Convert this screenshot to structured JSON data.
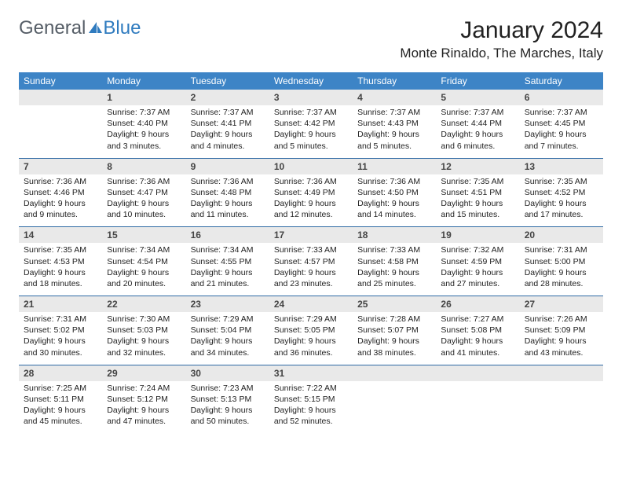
{
  "brand": {
    "part1": "General",
    "part2": "Blue"
  },
  "title": "January 2024",
  "location": "Monte Rinaldo, The Marches, Italy",
  "colors": {
    "header_bg": "#3d84c6",
    "header_text": "#ffffff",
    "daynum_bg": "#e9e9e9",
    "row_border": "#2f6aa5",
    "logo_gray": "#555d66",
    "logo_blue": "#2f7bbf"
  },
  "weekdays": [
    "Sunday",
    "Monday",
    "Tuesday",
    "Wednesday",
    "Thursday",
    "Friday",
    "Saturday"
  ],
  "weeks": [
    {
      "nums": [
        "",
        "1",
        "2",
        "3",
        "4",
        "5",
        "6"
      ],
      "cells": [
        null,
        {
          "sunrise": "Sunrise: 7:37 AM",
          "sunset": "Sunset: 4:40 PM",
          "day1": "Daylight: 9 hours",
          "day2": "and 3 minutes."
        },
        {
          "sunrise": "Sunrise: 7:37 AM",
          "sunset": "Sunset: 4:41 PM",
          "day1": "Daylight: 9 hours",
          "day2": "and 4 minutes."
        },
        {
          "sunrise": "Sunrise: 7:37 AM",
          "sunset": "Sunset: 4:42 PM",
          "day1": "Daylight: 9 hours",
          "day2": "and 5 minutes."
        },
        {
          "sunrise": "Sunrise: 7:37 AM",
          "sunset": "Sunset: 4:43 PM",
          "day1": "Daylight: 9 hours",
          "day2": "and 5 minutes."
        },
        {
          "sunrise": "Sunrise: 7:37 AM",
          "sunset": "Sunset: 4:44 PM",
          "day1": "Daylight: 9 hours",
          "day2": "and 6 minutes."
        },
        {
          "sunrise": "Sunrise: 7:37 AM",
          "sunset": "Sunset: 4:45 PM",
          "day1": "Daylight: 9 hours",
          "day2": "and 7 minutes."
        }
      ]
    },
    {
      "nums": [
        "7",
        "8",
        "9",
        "10",
        "11",
        "12",
        "13"
      ],
      "cells": [
        {
          "sunrise": "Sunrise: 7:36 AM",
          "sunset": "Sunset: 4:46 PM",
          "day1": "Daylight: 9 hours",
          "day2": "and 9 minutes."
        },
        {
          "sunrise": "Sunrise: 7:36 AM",
          "sunset": "Sunset: 4:47 PM",
          "day1": "Daylight: 9 hours",
          "day2": "and 10 minutes."
        },
        {
          "sunrise": "Sunrise: 7:36 AM",
          "sunset": "Sunset: 4:48 PM",
          "day1": "Daylight: 9 hours",
          "day2": "and 11 minutes."
        },
        {
          "sunrise": "Sunrise: 7:36 AM",
          "sunset": "Sunset: 4:49 PM",
          "day1": "Daylight: 9 hours",
          "day2": "and 12 minutes."
        },
        {
          "sunrise": "Sunrise: 7:36 AM",
          "sunset": "Sunset: 4:50 PM",
          "day1": "Daylight: 9 hours",
          "day2": "and 14 minutes."
        },
        {
          "sunrise": "Sunrise: 7:35 AM",
          "sunset": "Sunset: 4:51 PM",
          "day1": "Daylight: 9 hours",
          "day2": "and 15 minutes."
        },
        {
          "sunrise": "Sunrise: 7:35 AM",
          "sunset": "Sunset: 4:52 PM",
          "day1": "Daylight: 9 hours",
          "day2": "and 17 minutes."
        }
      ]
    },
    {
      "nums": [
        "14",
        "15",
        "16",
        "17",
        "18",
        "19",
        "20"
      ],
      "cells": [
        {
          "sunrise": "Sunrise: 7:35 AM",
          "sunset": "Sunset: 4:53 PM",
          "day1": "Daylight: 9 hours",
          "day2": "and 18 minutes."
        },
        {
          "sunrise": "Sunrise: 7:34 AM",
          "sunset": "Sunset: 4:54 PM",
          "day1": "Daylight: 9 hours",
          "day2": "and 20 minutes."
        },
        {
          "sunrise": "Sunrise: 7:34 AM",
          "sunset": "Sunset: 4:55 PM",
          "day1": "Daylight: 9 hours",
          "day2": "and 21 minutes."
        },
        {
          "sunrise": "Sunrise: 7:33 AM",
          "sunset": "Sunset: 4:57 PM",
          "day1": "Daylight: 9 hours",
          "day2": "and 23 minutes."
        },
        {
          "sunrise": "Sunrise: 7:33 AM",
          "sunset": "Sunset: 4:58 PM",
          "day1": "Daylight: 9 hours",
          "day2": "and 25 minutes."
        },
        {
          "sunrise": "Sunrise: 7:32 AM",
          "sunset": "Sunset: 4:59 PM",
          "day1": "Daylight: 9 hours",
          "day2": "and 27 minutes."
        },
        {
          "sunrise": "Sunrise: 7:31 AM",
          "sunset": "Sunset: 5:00 PM",
          "day1": "Daylight: 9 hours",
          "day2": "and 28 minutes."
        }
      ]
    },
    {
      "nums": [
        "21",
        "22",
        "23",
        "24",
        "25",
        "26",
        "27"
      ],
      "cells": [
        {
          "sunrise": "Sunrise: 7:31 AM",
          "sunset": "Sunset: 5:02 PM",
          "day1": "Daylight: 9 hours",
          "day2": "and 30 minutes."
        },
        {
          "sunrise": "Sunrise: 7:30 AM",
          "sunset": "Sunset: 5:03 PM",
          "day1": "Daylight: 9 hours",
          "day2": "and 32 minutes."
        },
        {
          "sunrise": "Sunrise: 7:29 AM",
          "sunset": "Sunset: 5:04 PM",
          "day1": "Daylight: 9 hours",
          "day2": "and 34 minutes."
        },
        {
          "sunrise": "Sunrise: 7:29 AM",
          "sunset": "Sunset: 5:05 PM",
          "day1": "Daylight: 9 hours",
          "day2": "and 36 minutes."
        },
        {
          "sunrise": "Sunrise: 7:28 AM",
          "sunset": "Sunset: 5:07 PM",
          "day1": "Daylight: 9 hours",
          "day2": "and 38 minutes."
        },
        {
          "sunrise": "Sunrise: 7:27 AM",
          "sunset": "Sunset: 5:08 PM",
          "day1": "Daylight: 9 hours",
          "day2": "and 41 minutes."
        },
        {
          "sunrise": "Sunrise: 7:26 AM",
          "sunset": "Sunset: 5:09 PM",
          "day1": "Daylight: 9 hours",
          "day2": "and 43 minutes."
        }
      ]
    },
    {
      "nums": [
        "28",
        "29",
        "30",
        "31",
        "",
        "",
        ""
      ],
      "cells": [
        {
          "sunrise": "Sunrise: 7:25 AM",
          "sunset": "Sunset: 5:11 PM",
          "day1": "Daylight: 9 hours",
          "day2": "and 45 minutes."
        },
        {
          "sunrise": "Sunrise: 7:24 AM",
          "sunset": "Sunset: 5:12 PM",
          "day1": "Daylight: 9 hours",
          "day2": "and 47 minutes."
        },
        {
          "sunrise": "Sunrise: 7:23 AM",
          "sunset": "Sunset: 5:13 PM",
          "day1": "Daylight: 9 hours",
          "day2": "and 50 minutes."
        },
        {
          "sunrise": "Sunrise: 7:22 AM",
          "sunset": "Sunset: 5:15 PM",
          "day1": "Daylight: 9 hours",
          "day2": "and 52 minutes."
        },
        null,
        null,
        null
      ]
    }
  ]
}
